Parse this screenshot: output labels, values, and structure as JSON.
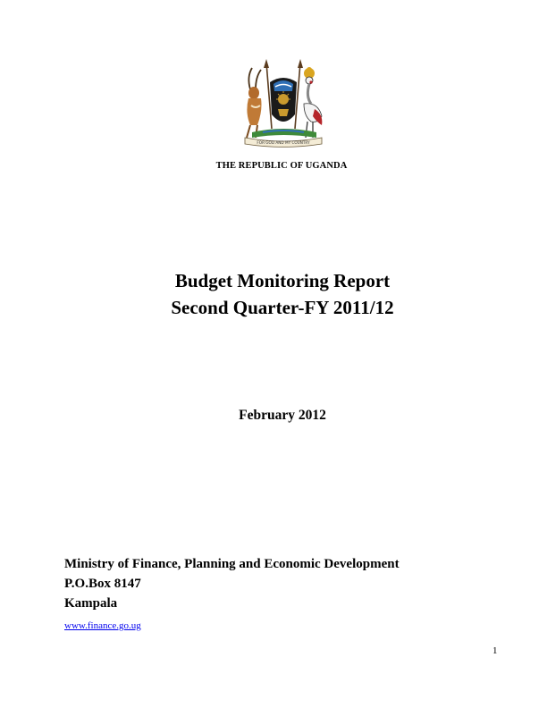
{
  "header": {
    "emblem": {
      "name": "uganda-coat-of-arms-icon",
      "motto": "FOR GOD AND MY COUNTRY"
    },
    "country": "THE REPUBLIC OF UGANDA"
  },
  "title": {
    "line1": "Budget Monitoring Report",
    "line2": "Second Quarter-FY 2011/12"
  },
  "date": "February 2012",
  "publisher": {
    "ministry": "Ministry of Finance, Planning and Economic Development",
    "po_box": "P.O.Box 8147",
    "city": "Kampala",
    "website": "www.finance.go.ug"
  },
  "page_number": "1",
  "colors": {
    "link": "#0000ee",
    "emblem_shield": "#1a1a1a",
    "emblem_gold": "#c99a2e",
    "emblem_blue": "#2f6fb5",
    "emblem_red": "#b5252a"
  }
}
